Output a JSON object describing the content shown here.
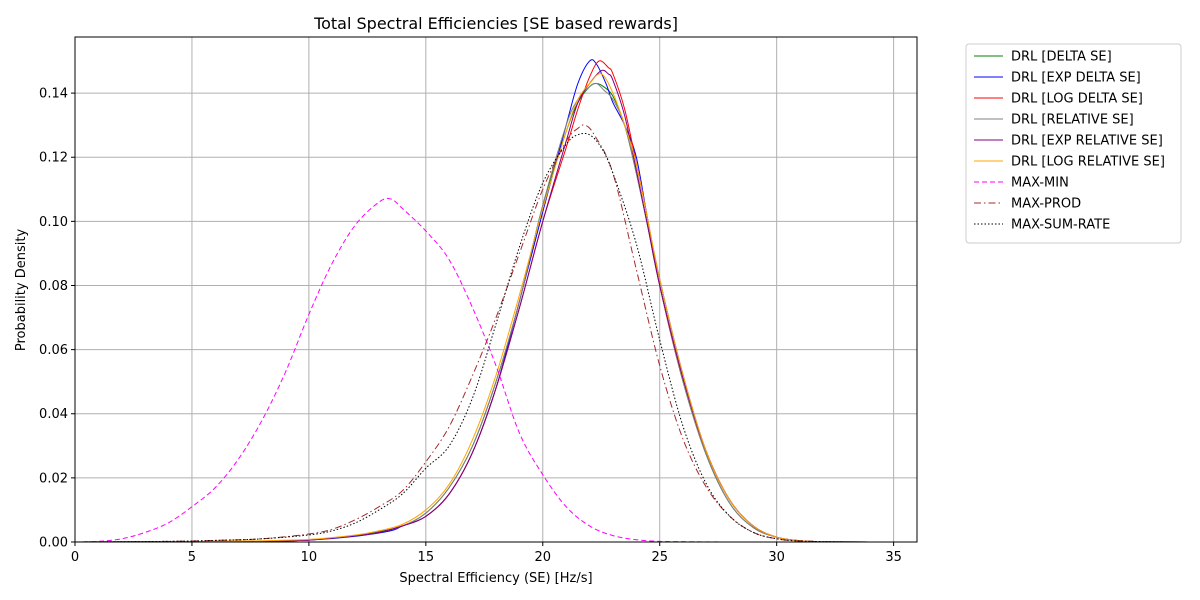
{
  "chart_data": {
    "type": "line",
    "title": "Total Spectral Efficiencies [SE based rewards]",
    "xlabel": "Spectral Efficiency (SE) [Hz/s]",
    "ylabel": "Probability Density",
    "xlim": [
      0,
      36
    ],
    "ylim": [
      0,
      0.1575
    ],
    "xticks": [
      0,
      5,
      10,
      15,
      20,
      25,
      30,
      35
    ],
    "yticks": [
      0.0,
      0.02,
      0.04,
      0.06,
      0.08,
      0.1,
      0.12,
      0.14
    ],
    "xtick_labels": [
      "0",
      "5",
      "10",
      "15",
      "20",
      "25",
      "30",
      "35"
    ],
    "ytick_labels": [
      "0.00",
      "0.02",
      "0.04",
      "0.06",
      "0.08",
      "0.10",
      "0.12",
      "0.14"
    ],
    "grid": true,
    "legend_position": "outside-right-top",
    "series": [
      {
        "name": "DRL [DELTA SE]",
        "color": "#008000",
        "dash": "solid",
        "points": [
          [
            0,
            0
          ],
          [
            4,
            0.0001
          ],
          [
            8,
            0.0003
          ],
          [
            10,
            0.0007
          ],
          [
            12,
            0.002
          ],
          [
            13,
            0.0032
          ],
          [
            14,
            0.005
          ],
          [
            15,
            0.009
          ],
          [
            16,
            0.017
          ],
          [
            17,
            0.03
          ],
          [
            18,
            0.05
          ],
          [
            19,
            0.075
          ],
          [
            20,
            0.105
          ],
          [
            21,
            0.128
          ],
          [
            21.5,
            0.137
          ],
          [
            22,
            0.142
          ],
          [
            22.3,
            0.143
          ],
          [
            22.6,
            0.142
          ],
          [
            23,
            0.139
          ],
          [
            23.5,
            0.13
          ],
          [
            24,
            0.115
          ],
          [
            24.5,
            0.098
          ],
          [
            25,
            0.08
          ],
          [
            26,
            0.05
          ],
          [
            27,
            0.027
          ],
          [
            28,
            0.012
          ],
          [
            29,
            0.0045
          ],
          [
            30,
            0.0015
          ],
          [
            31,
            0.0004
          ],
          [
            32,
            0.0001
          ],
          [
            34,
            0
          ]
        ]
      },
      {
        "name": "DRL [EXP DELTA SE]",
        "color": "#0000ff",
        "dash": "solid",
        "points": [
          [
            0,
            0
          ],
          [
            4,
            0.0001
          ],
          [
            8,
            0.0003
          ],
          [
            10,
            0.0006
          ],
          [
            12,
            0.0018
          ],
          [
            13.5,
            0.0035
          ],
          [
            14,
            0.005
          ],
          [
            15,
            0.008
          ],
          [
            16,
            0.015
          ],
          [
            17,
            0.028
          ],
          [
            18,
            0.048
          ],
          [
            19,
            0.075
          ],
          [
            20,
            0.103
          ],
          [
            21,
            0.13
          ],
          [
            21.5,
            0.143
          ],
          [
            22,
            0.15
          ],
          [
            22.3,
            0.149
          ],
          [
            22.7,
            0.143
          ],
          [
            23,
            0.137
          ],
          [
            23.5,
            0.13
          ],
          [
            24,
            0.12
          ],
          [
            24.5,
            0.1
          ],
          [
            25,
            0.082
          ],
          [
            26,
            0.052
          ],
          [
            27,
            0.028
          ],
          [
            28,
            0.013
          ],
          [
            29,
            0.005
          ],
          [
            30,
            0.0015
          ],
          [
            31,
            0.0004
          ],
          [
            32,
            0.0001
          ],
          [
            34,
            0
          ]
        ]
      },
      {
        "name": "DRL [LOG DELTA SE]",
        "color": "#ff0000",
        "dash": "solid",
        "points": [
          [
            0,
            0
          ],
          [
            4,
            0.0001
          ],
          [
            8,
            0.0003
          ],
          [
            10,
            0.0006
          ],
          [
            12,
            0.002
          ],
          [
            13,
            0.003
          ],
          [
            14,
            0.005
          ],
          [
            15,
            0.008
          ],
          [
            16,
            0.015
          ],
          [
            17,
            0.028
          ],
          [
            18,
            0.048
          ],
          [
            19,
            0.073
          ],
          [
            20,
            0.1
          ],
          [
            21,
            0.123
          ],
          [
            21.5,
            0.135
          ],
          [
            22,
            0.145
          ],
          [
            22.4,
            0.15
          ],
          [
            22.8,
            0.148
          ],
          [
            23,
            0.146
          ],
          [
            23.5,
            0.135
          ],
          [
            24,
            0.118
          ],
          [
            24.5,
            0.1
          ],
          [
            25,
            0.08
          ],
          [
            26,
            0.05
          ],
          [
            27,
            0.028
          ],
          [
            28,
            0.013
          ],
          [
            29,
            0.005
          ],
          [
            30,
            0.0015
          ],
          [
            31,
            0.0004
          ],
          [
            32,
            0.0001
          ],
          [
            34,
            0
          ]
        ]
      },
      {
        "name": "DRL [RELATIVE SE]",
        "color": "#808080",
        "dash": "solid",
        "points": [
          [
            0,
            0
          ],
          [
            4,
            0.0001
          ],
          [
            8,
            0.0003
          ],
          [
            10,
            0.0007
          ],
          [
            12,
            0.002
          ],
          [
            13,
            0.003
          ],
          [
            14,
            0.005
          ],
          [
            15,
            0.009
          ],
          [
            16,
            0.017
          ],
          [
            17,
            0.03
          ],
          [
            18,
            0.05
          ],
          [
            19,
            0.075
          ],
          [
            20,
            0.105
          ],
          [
            21,
            0.13
          ],
          [
            21.5,
            0.138
          ],
          [
            22,
            0.142
          ],
          [
            22.3,
            0.143
          ],
          [
            22.6,
            0.141
          ],
          [
            23,
            0.138
          ],
          [
            23.5,
            0.13
          ],
          [
            24,
            0.115
          ],
          [
            24.5,
            0.098
          ],
          [
            25,
            0.08
          ],
          [
            26,
            0.05
          ],
          [
            27,
            0.027
          ],
          [
            28,
            0.012
          ],
          [
            29,
            0.0045
          ],
          [
            30,
            0.0015
          ],
          [
            31,
            0.0004
          ],
          [
            32,
            0.0001
          ],
          [
            34,
            0
          ]
        ]
      },
      {
        "name": "DRL [EXP RELATIVE SE]",
        "color": "#800080",
        "dash": "solid",
        "points": [
          [
            0,
            0
          ],
          [
            4,
            0.0001
          ],
          [
            8,
            0.0003
          ],
          [
            10,
            0.0006
          ],
          [
            12,
            0.002
          ],
          [
            13,
            0.003
          ],
          [
            14,
            0.005
          ],
          [
            15,
            0.008
          ],
          [
            16,
            0.015
          ],
          [
            17,
            0.028
          ],
          [
            18,
            0.048
          ],
          [
            19,
            0.073
          ],
          [
            20,
            0.1
          ],
          [
            21,
            0.125
          ],
          [
            21.5,
            0.137
          ],
          [
            22,
            0.143
          ],
          [
            22.5,
            0.147
          ],
          [
            22.8,
            0.146
          ],
          [
            23,
            0.144
          ],
          [
            23.5,
            0.133
          ],
          [
            24,
            0.116
          ],
          [
            24.5,
            0.098
          ],
          [
            25,
            0.08
          ],
          [
            26,
            0.051
          ],
          [
            27,
            0.028
          ],
          [
            28,
            0.013
          ],
          [
            29,
            0.005
          ],
          [
            30,
            0.0015
          ],
          [
            31,
            0.0004
          ],
          [
            32,
            0.0001
          ],
          [
            34,
            0
          ]
        ]
      },
      {
        "name": "DRL [LOG RELATIVE SE]",
        "color": "#ffa500",
        "dash": "solid",
        "points": [
          [
            0,
            0
          ],
          [
            4,
            0.0001
          ],
          [
            8,
            0.0004
          ],
          [
            10,
            0.0008
          ],
          [
            12,
            0.0022
          ],
          [
            13,
            0.0035
          ],
          [
            14,
            0.0055
          ],
          [
            15,
            0.01
          ],
          [
            16,
            0.018
          ],
          [
            17,
            0.032
          ],
          [
            18,
            0.052
          ],
          [
            19,
            0.077
          ],
          [
            20,
            0.104
          ],
          [
            21,
            0.128
          ],
          [
            21.5,
            0.138
          ],
          [
            22,
            0.143
          ],
          [
            22.5,
            0.146
          ],
          [
            23,
            0.14
          ],
          [
            23.5,
            0.13
          ],
          [
            24,
            0.118
          ],
          [
            24.5,
            0.1
          ],
          [
            25,
            0.082
          ],
          [
            26,
            0.052
          ],
          [
            27,
            0.028
          ],
          [
            28,
            0.013
          ],
          [
            29,
            0.005
          ],
          [
            30,
            0.0015
          ],
          [
            31,
            0.0004
          ],
          [
            32,
            0.0001
          ],
          [
            34,
            0
          ]
        ]
      },
      {
        "name": "MAX-MIN",
        "color": "#ff00ff",
        "dash": "dashed",
        "points": [
          [
            0,
            0
          ],
          [
            1,
            0.0002
          ],
          [
            2,
            0.001
          ],
          [
            3,
            0.003
          ],
          [
            4,
            0.006
          ],
          [
            5,
            0.011
          ],
          [
            6,
            0.017
          ],
          [
            7,
            0.026
          ],
          [
            8,
            0.038
          ],
          [
            9,
            0.053
          ],
          [
            10,
            0.071
          ],
          [
            11,
            0.087
          ],
          [
            12,
            0.099
          ],
          [
            13,
            0.106
          ],
          [
            13.5,
            0.107
          ],
          [
            14,
            0.104
          ],
          [
            15,
            0.097
          ],
          [
            16,
            0.088
          ],
          [
            17,
            0.073
          ],
          [
            18,
            0.055
          ],
          [
            19,
            0.034
          ],
          [
            20,
            0.021
          ],
          [
            21,
            0.011
          ],
          [
            22,
            0.005
          ],
          [
            23,
            0.002
          ],
          [
            24,
            0.0007
          ],
          [
            25,
            0.0002
          ],
          [
            26,
            0.0001
          ],
          [
            28,
            0
          ]
        ]
      },
      {
        "name": "MAX-PROD",
        "color": "#a52a2a",
        "dash": "dashdot",
        "points": [
          [
            0,
            0
          ],
          [
            4,
            0.0002
          ],
          [
            6,
            0.0005
          ],
          [
            8,
            0.001
          ],
          [
            10,
            0.0025
          ],
          [
            11,
            0.004
          ],
          [
            12,
            0.007
          ],
          [
            13,
            0.011
          ],
          [
            14,
            0.016
          ],
          [
            15,
            0.025
          ],
          [
            16,
            0.036
          ],
          [
            17,
            0.052
          ],
          [
            18,
            0.07
          ],
          [
            19,
            0.09
          ],
          [
            20,
            0.11
          ],
          [
            21,
            0.125
          ],
          [
            21.5,
            0.129
          ],
          [
            21.8,
            0.13
          ],
          [
            22.2,
            0.127
          ],
          [
            23,
            0.115
          ],
          [
            24,
            0.085
          ],
          [
            25,
            0.055
          ],
          [
            26,
            0.032
          ],
          [
            27,
            0.017
          ],
          [
            28,
            0.008
          ],
          [
            29,
            0.003
          ],
          [
            30,
            0.001
          ],
          [
            31,
            0.0003
          ],
          [
            33,
            0
          ]
        ]
      },
      {
        "name": "MAX-SUM-RATE",
        "color": "#000000",
        "dash": "dotted",
        "points": [
          [
            0,
            0
          ],
          [
            4,
            0.0002
          ],
          [
            6,
            0.0005
          ],
          [
            8,
            0.001
          ],
          [
            10,
            0.0022
          ],
          [
            11,
            0.0035
          ],
          [
            12,
            0.006
          ],
          [
            13,
            0.01
          ],
          [
            14,
            0.015
          ],
          [
            15,
            0.023
          ],
          [
            16,
            0.03
          ],
          [
            17,
            0.045
          ],
          [
            18,
            0.068
          ],
          [
            19,
            0.092
          ],
          [
            20,
            0.112
          ],
          [
            21,
            0.124
          ],
          [
            21.5,
            0.127
          ],
          [
            22,
            0.127
          ],
          [
            22.5,
            0.123
          ],
          [
            23,
            0.115
          ],
          [
            24,
            0.093
          ],
          [
            25,
            0.063
          ],
          [
            26,
            0.036
          ],
          [
            27,
            0.018
          ],
          [
            28,
            0.008
          ],
          [
            29,
            0.003
          ],
          [
            30,
            0.001
          ],
          [
            31,
            0.0003
          ],
          [
            33,
            0
          ]
        ]
      }
    ]
  }
}
